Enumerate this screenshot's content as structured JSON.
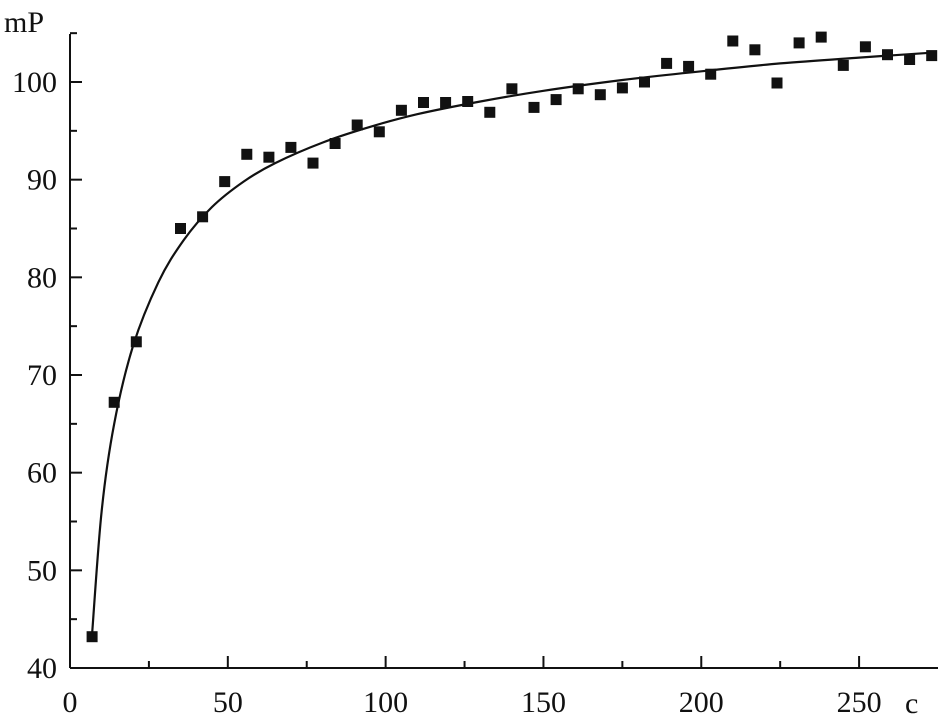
{
  "chart_data": {
    "type": "scatter",
    "title": "",
    "xlabel": "c",
    "ylabel": "mP",
    "xlim": [
      0,
      275
    ],
    "ylim": [
      40,
      105
    ],
    "x_ticks": [
      0,
      50,
      100,
      150,
      200,
      250
    ],
    "y_ticks": [
      40,
      50,
      60,
      70,
      80,
      90,
      100
    ],
    "grid": false,
    "legend": "none",
    "colors": {
      "marker": "#111111",
      "line": "#111111"
    },
    "series": [
      {
        "kind": "points",
        "x": [
          7,
          14,
          21,
          35,
          42,
          49,
          56,
          63,
          70,
          77,
          84,
          91,
          98,
          105,
          112,
          119,
          126,
          133,
          140,
          147,
          154,
          161,
          168,
          175,
          182,
          189,
          196,
          203,
          210,
          217,
          224,
          231,
          238,
          245,
          252,
          259,
          266,
          273
        ],
        "y": [
          43.2,
          67.2,
          73.4,
          85.0,
          86.2,
          89.8,
          92.6,
          92.3,
          93.3,
          91.7,
          93.7,
          95.6,
          94.9,
          97.1,
          97.9,
          97.9,
          98.0,
          96.9,
          99.3,
          97.4,
          98.2,
          99.3,
          98.7,
          99.4,
          100.0,
          101.9,
          101.6,
          100.8,
          104.2,
          103.3,
          99.9,
          104.0,
          104.6,
          101.7,
          103.6,
          102.8,
          102.3,
          102.7
        ]
      },
      {
        "kind": "curve",
        "x": [
          7,
          10,
          14,
          20,
          28,
          36,
          45,
          55,
          65,
          80,
          95,
          110,
          130,
          150,
          175,
          200,
          225,
          250,
          273
        ],
        "y": [
          43.5,
          56.0,
          65.0,
          73.0,
          79.5,
          83.8,
          87.2,
          89.8,
          91.7,
          93.8,
          95.4,
          96.7,
          98.0,
          99.1,
          100.2,
          101.1,
          101.9,
          102.5,
          103.0
        ]
      }
    ]
  }
}
